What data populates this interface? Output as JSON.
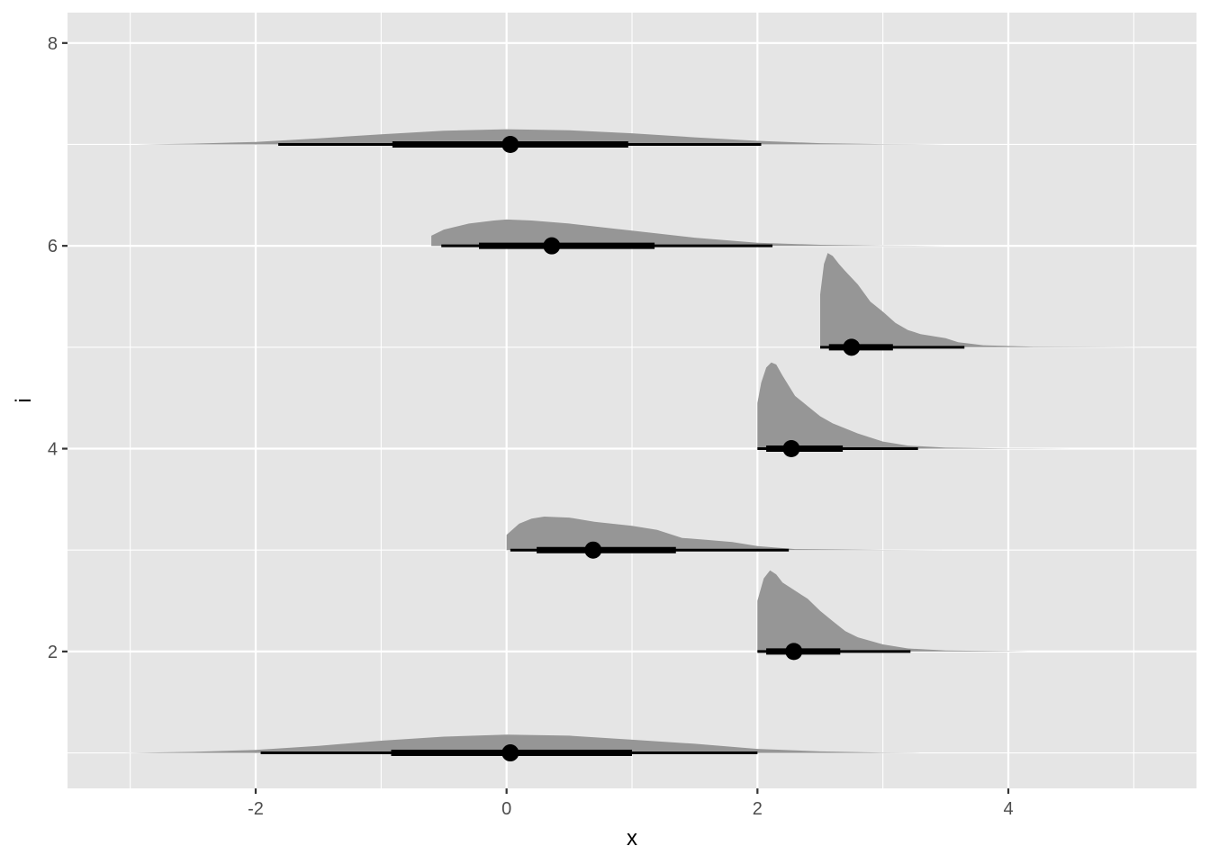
{
  "chart_data": {
    "type": "halfeye",
    "xlabel": "x",
    "ylabel": "i",
    "xlim": [
      -3.5,
      5.5
    ],
    "ylim": [
      0.65,
      8.3
    ],
    "x_ticks": [
      -2,
      0,
      2,
      4
    ],
    "y_ticks": [
      2,
      4,
      6,
      8
    ],
    "x_ticks_minor": [
      -3,
      -1,
      1,
      3,
      5
    ],
    "y_ticks_minor": [
      1,
      3,
      5,
      7
    ],
    "grid": true,
    "colors": {
      "panel": "#e5e5e5",
      "grid": "#ffffff",
      "density": "#969696",
      "interval": "#000000",
      "point": "#000000"
    },
    "series": [
      {
        "i": 1,
        "point": 0.03,
        "interval_66": [
          -0.92,
          1.0
        ],
        "interval_95": [
          -1.96,
          2.0
        ],
        "density": [
          [
            -3.05,
            0.0
          ],
          [
            -2.5,
            0.01
          ],
          [
            -2.0,
            0.03
          ],
          [
            -1.5,
            0.07
          ],
          [
            -1.0,
            0.12
          ],
          [
            -0.5,
            0.16
          ],
          [
            0.0,
            0.18
          ],
          [
            0.5,
            0.17
          ],
          [
            1.0,
            0.13
          ],
          [
            1.5,
            0.09
          ],
          [
            2.0,
            0.04
          ],
          [
            2.5,
            0.015
          ],
          [
            3.0,
            0.003
          ],
          [
            3.3,
            0.0
          ]
        ]
      },
      {
        "i": 2,
        "point": 2.29,
        "interval_66": [
          2.07,
          2.66
        ],
        "interval_95": [
          2.0,
          3.22
        ],
        "density": [
          [
            2.0,
            0.0
          ],
          [
            2.0,
            0.5
          ],
          [
            2.05,
            0.72
          ],
          [
            2.1,
            0.8
          ],
          [
            2.15,
            0.76
          ],
          [
            2.2,
            0.68
          ],
          [
            2.3,
            0.6
          ],
          [
            2.4,
            0.52
          ],
          [
            2.5,
            0.4
          ],
          [
            2.6,
            0.3
          ],
          [
            2.7,
            0.2
          ],
          [
            2.8,
            0.14
          ],
          [
            3.0,
            0.07
          ],
          [
            3.2,
            0.03
          ],
          [
            3.5,
            0.01
          ],
          [
            4.0,
            0.003
          ],
          [
            4.2,
            0.0
          ]
        ]
      },
      {
        "i": 3,
        "point": 0.69,
        "interval_66": [
          0.24,
          1.35
        ],
        "interval_95": [
          0.03,
          2.25
        ],
        "density": [
          [
            0.0,
            0.0
          ],
          [
            0.0,
            0.15
          ],
          [
            0.1,
            0.26
          ],
          [
            0.2,
            0.31
          ],
          [
            0.3,
            0.33
          ],
          [
            0.5,
            0.32
          ],
          [
            0.7,
            0.28
          ],
          [
            1.0,
            0.24
          ],
          [
            1.2,
            0.2
          ],
          [
            1.4,
            0.12
          ],
          [
            1.6,
            0.1
          ],
          [
            1.8,
            0.08
          ],
          [
            2.0,
            0.04
          ],
          [
            2.3,
            0.01
          ],
          [
            3.0,
            0.002
          ],
          [
            3.5,
            0.0
          ]
        ]
      },
      {
        "i": 4,
        "point": 2.27,
        "interval_66": [
          2.07,
          2.68
        ],
        "interval_95": [
          2.0,
          3.28
        ],
        "density": [
          [
            2.0,
            0.0
          ],
          [
            2.0,
            0.45
          ],
          [
            2.03,
            0.65
          ],
          [
            2.07,
            0.8
          ],
          [
            2.11,
            0.85
          ],
          [
            2.15,
            0.83
          ],
          [
            2.2,
            0.72
          ],
          [
            2.3,
            0.52
          ],
          [
            2.4,
            0.42
          ],
          [
            2.5,
            0.32
          ],
          [
            2.6,
            0.25
          ],
          [
            2.8,
            0.15
          ],
          [
            3.0,
            0.07
          ],
          [
            3.2,
            0.03
          ],
          [
            3.5,
            0.01
          ],
          [
            4.0,
            0.003
          ],
          [
            4.5,
            0.0
          ]
        ]
      },
      {
        "i": 5,
        "point": 2.75,
        "interval_66": [
          2.57,
          3.08
        ],
        "interval_95": [
          2.5,
          3.65
        ],
        "density": [
          [
            2.5,
            0.0
          ],
          [
            2.5,
            0.52
          ],
          [
            2.53,
            0.82
          ],
          [
            2.56,
            0.93
          ],
          [
            2.6,
            0.9
          ],
          [
            2.65,
            0.82
          ],
          [
            2.7,
            0.75
          ],
          [
            2.8,
            0.62
          ],
          [
            2.9,
            0.45
          ],
          [
            3.0,
            0.35
          ],
          [
            3.1,
            0.24
          ],
          [
            3.2,
            0.17
          ],
          [
            3.3,
            0.13
          ],
          [
            3.5,
            0.09
          ],
          [
            3.6,
            0.05
          ],
          [
            3.8,
            0.02
          ],
          [
            4.2,
            0.005
          ],
          [
            5.2,
            0.0
          ]
        ]
      },
      {
        "i": 6,
        "point": 0.36,
        "interval_66": [
          -0.22,
          1.18
        ],
        "interval_95": [
          -0.52,
          2.12
        ],
        "density": [
          [
            -0.6,
            0.0
          ],
          [
            -0.6,
            0.1
          ],
          [
            -0.5,
            0.16
          ],
          [
            -0.3,
            0.22
          ],
          [
            -0.1,
            0.25
          ],
          [
            0.0,
            0.26
          ],
          [
            0.2,
            0.25
          ],
          [
            0.5,
            0.22
          ],
          [
            1.0,
            0.15
          ],
          [
            1.5,
            0.08
          ],
          [
            2.0,
            0.03
          ],
          [
            2.5,
            0.01
          ],
          [
            3.0,
            0.002
          ],
          [
            3.5,
            0.0
          ]
        ]
      },
      {
        "i": 7,
        "point": 0.03,
        "interval_66": [
          -0.91,
          0.97
        ],
        "interval_95": [
          -1.82,
          2.03
        ],
        "density": [
          [
            -2.95,
            0.0
          ],
          [
            -2.5,
            0.008
          ],
          [
            -2.0,
            0.025
          ],
          [
            -1.5,
            0.06
          ],
          [
            -1.0,
            0.1
          ],
          [
            -0.5,
            0.135
          ],
          [
            0.0,
            0.15
          ],
          [
            0.5,
            0.14
          ],
          [
            1.0,
            0.11
          ],
          [
            1.5,
            0.07
          ],
          [
            2.0,
            0.035
          ],
          [
            2.5,
            0.012
          ],
          [
            3.0,
            0.003
          ],
          [
            3.5,
            0.0
          ]
        ]
      }
    ]
  }
}
